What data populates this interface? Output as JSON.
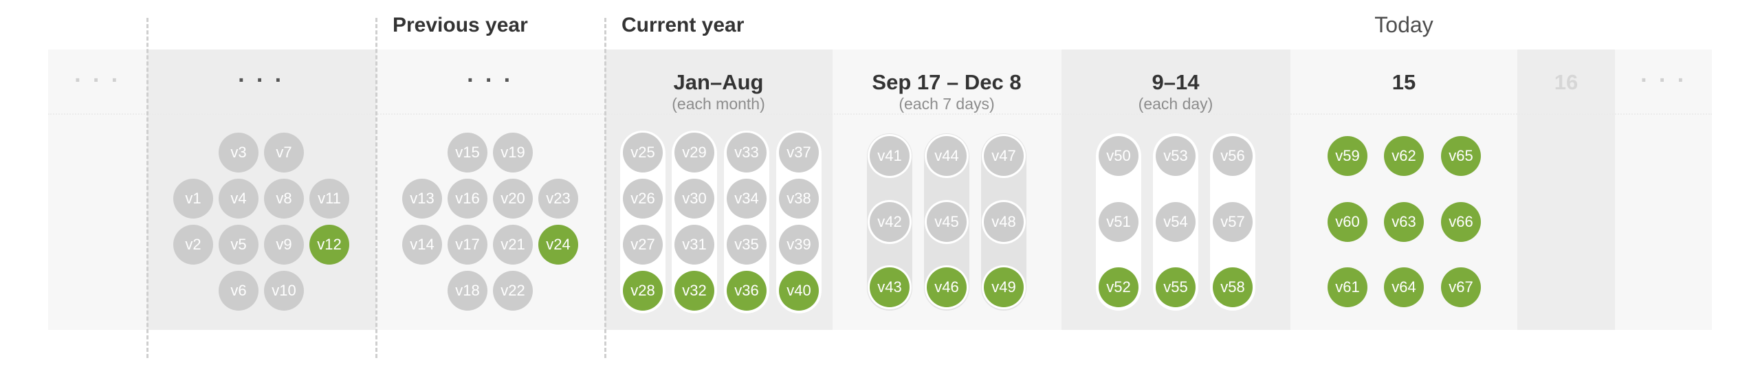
{
  "headers": {
    "previous_year": "Previous year",
    "current_year": "Current year",
    "today": "Today"
  },
  "columns": {
    "far_left": {
      "ellipsis": "· · ·"
    },
    "older": {
      "ellipsis": "· · ·"
    },
    "previous_year": {
      "ellipsis": "· · ·"
    },
    "jan_aug": {
      "title": "Jan–Aug",
      "subtitle": "(each month)"
    },
    "sep_dec": {
      "title": "Sep 17 – Dec 8",
      "subtitle": "(each 7 days)"
    },
    "days_9_14": {
      "title": "9–14",
      "subtitle": "(each day)"
    },
    "day_15": {
      "title": "15"
    },
    "day_16": {
      "title": "16"
    },
    "far_right": {
      "ellipsis": "· · ·"
    }
  },
  "versions": {
    "older": [
      [
        "v3",
        "v7"
      ],
      [
        "v1",
        "v4",
        "v8",
        "v11"
      ],
      [
        "v2",
        "v5",
        "v9",
        "v12"
      ],
      [
        "v6",
        "v10"
      ]
    ],
    "previous_year": [
      [
        "v15",
        "v19"
      ],
      [
        "v13",
        "v16",
        "v20",
        "v23"
      ],
      [
        "v14",
        "v17",
        "v21",
        "v24"
      ],
      [
        "v18",
        "v22"
      ]
    ],
    "jan_aug": [
      [
        "v25",
        "v26",
        "v27",
        "v28"
      ],
      [
        "v29",
        "v30",
        "v31",
        "v32"
      ],
      [
        "v33",
        "v34",
        "v35",
        "v36"
      ],
      [
        "v37",
        "v38",
        "v39",
        "v40"
      ]
    ],
    "sep_dec": [
      [
        "v41",
        "v42",
        "v43"
      ],
      [
        "v44",
        "v45",
        "v46"
      ],
      [
        "v47",
        "v48",
        "v49"
      ]
    ],
    "days_9_14": [
      [
        "v50",
        "v51",
        "v52"
      ],
      [
        "v53",
        "v54",
        "v55"
      ],
      [
        "v56",
        "v57",
        "v58"
      ]
    ],
    "day_15": [
      [
        "v59",
        "v60",
        "v61"
      ],
      [
        "v62",
        "v63",
        "v64"
      ],
      [
        "v65",
        "v66",
        "v67"
      ]
    ]
  },
  "kept_versions": [
    "v12",
    "v24",
    "v28",
    "v32",
    "v36",
    "v40",
    "v43",
    "v46",
    "v49",
    "v52",
    "v55",
    "v58",
    "v59",
    "v60",
    "v61",
    "v62",
    "v63",
    "v64",
    "v65",
    "v66",
    "v67"
  ],
  "colors": {
    "kept": "#7cab3b",
    "pruned": "#cccccc",
    "band_light": "#f7f7f7",
    "band_mid": "#ededed"
  }
}
